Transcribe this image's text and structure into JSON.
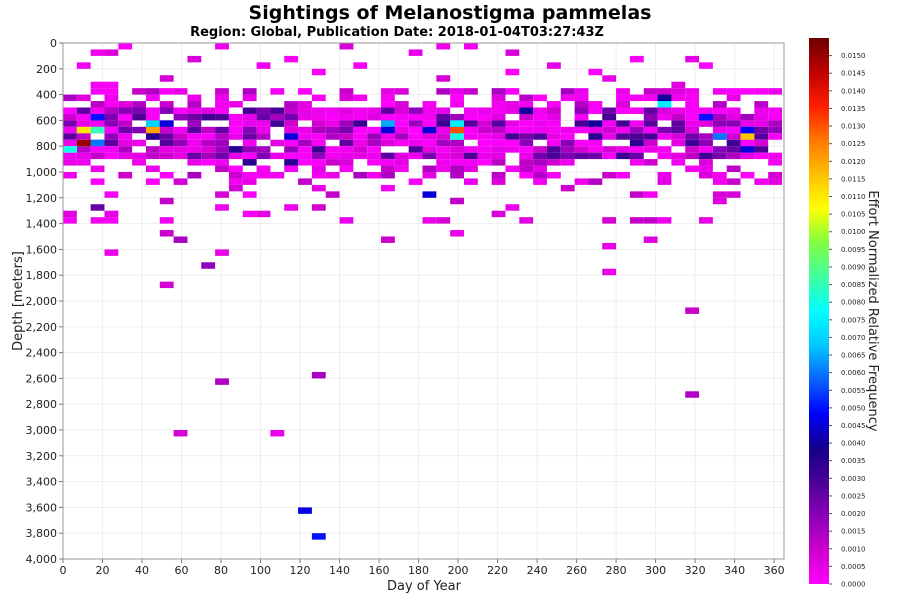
{
  "chart_data": {
    "type": "heatmap",
    "title": "Sightings of Melanostigma pammelas",
    "subtitle": "Region: Global, Publication Date: 2018-01-04T03:27:43Z",
    "xlabel": "Day of Year",
    "ylabel": "Depth [meters]",
    "colorbar_label": "Effort Normalized Relative Frequency",
    "xlim": [
      0,
      365
    ],
    "ylim": [
      0,
      4000
    ],
    "y_inverted": true,
    "x_ticks": [
      "0",
      "20",
      "40",
      "60",
      "80",
      "100",
      "120",
      "140",
      "160",
      "180",
      "200",
      "220",
      "240",
      "260",
      "280",
      "300",
      "320",
      "340",
      "360"
    ],
    "y_ticks": [
      "0",
      "200",
      "400",
      "600",
      "800",
      "1,000",
      "1,200",
      "1,400",
      "1,600",
      "1,800",
      "2,000",
      "2,200",
      "2,400",
      "2,600",
      "2,800",
      "3,000",
      "3,200",
      "3,400",
      "3,600",
      "3,800",
      "4,000"
    ],
    "colorbar_range": [
      0,
      0.0155
    ],
    "colorbar_ticks": [
      "0.0000",
      "0.0005",
      "0.0010",
      "0.0015",
      "0.0020",
      "0.0025",
      "0.0030",
      "0.0035",
      "0.0040",
      "0.0045",
      "0.0050",
      "0.0055",
      "0.0060",
      "0.0065",
      "0.0070",
      "0.0075",
      "0.0080",
      "0.0085",
      "0.0090",
      "0.0095",
      "0.0100",
      "0.0105",
      "0.0110",
      "0.0115",
      "0.0120",
      "0.0125",
      "0.0130",
      "0.0135",
      "0.0140",
      "0.0145",
      "0.0150"
    ],
    "colorscale": [
      "#ff00ff",
      "#cc00cc",
      "#8a00b8",
      "#4b0096",
      "#14008c",
      "#0000ff",
      "#0a64ff",
      "#00c8ff",
      "#00ffff",
      "#40ffa0",
      "#80ff40",
      "#ffff00",
      "#ffc000",
      "#ff7800",
      "#ff1e00",
      "#c00000",
      "#6e0000"
    ],
    "grid": true,
    "legend": "colorbar-right",
    "bin_size": {
      "day": 7,
      "depth_m": 50
    },
    "cells": [
      {
        "day": 14,
        "depth": 50,
        "value": 0.0003
      },
      {
        "day": 49,
        "depth": 250,
        "value": 0.0008
      },
      {
        "day": 14,
        "depth": 1250,
        "value": 0.0025
      },
      {
        "day": 21,
        "depth": 1300,
        "value": 0.0005
      },
      {
        "day": 21,
        "depth": 1600,
        "value": 0.0004
      },
      {
        "day": 49,
        "depth": 1350,
        "value": 0.0003
      },
      {
        "day": 49,
        "depth": 1450,
        "value": 0.001
      },
      {
        "day": 49,
        "depth": 1850,
        "value": 0.0008
      },
      {
        "day": 56,
        "depth": 1500,
        "value": 0.0015
      },
      {
        "day": 70,
        "depth": 1700,
        "value": 0.0018
      },
      {
        "day": 77,
        "depth": 1250,
        "value": 0.0003
      },
      {
        "day": 77,
        "depth": 1600,
        "value": 0.0004
      },
      {
        "day": 77,
        "depth": 2600,
        "value": 0.0014
      },
      {
        "day": 56,
        "depth": 3000,
        "value": 0.0008
      },
      {
        "day": 105,
        "depth": 3000,
        "value": 0.0004
      },
      {
        "day": 126,
        "depth": 2550,
        "value": 0.0015
      },
      {
        "day": 119,
        "depth": 3600,
        "value": 0.0046
      },
      {
        "day": 126,
        "depth": 3800,
        "value": 0.005
      },
      {
        "day": 140,
        "depth": 1350,
        "value": 0.0004
      },
      {
        "day": 161,
        "depth": 1500,
        "value": 0.001
      },
      {
        "day": 182,
        "depth": 1150,
        "value": 0.0045
      },
      {
        "day": 196,
        "depth": 1450,
        "value": 0.0004
      },
      {
        "day": 224,
        "depth": 1250,
        "value": 0.0004
      },
      {
        "day": 273,
        "depth": 1350,
        "value": 0.0008
      },
      {
        "day": 273,
        "depth": 1750,
        "value": 0.0004
      },
      {
        "day": 273,
        "depth": 1550,
        "value": 0.0004
      },
      {
        "day": 294,
        "depth": 1500,
        "value": 0.0006
      },
      {
        "day": 315,
        "depth": 2050,
        "value": 0.001
      },
      {
        "day": 315,
        "depth": 2700,
        "value": 0.0014
      },
      {
        "day": 329,
        "depth": 1200,
        "value": 0.0006
      },
      {
        "day": 14,
        "depth": 650,
        "value": 0.0085
      },
      {
        "day": 7,
        "depth": 650,
        "value": 0.011
      },
      {
        "day": 7,
        "depth": 750,
        "value": 0.015
      },
      {
        "day": 0,
        "depth": 800,
        "value": 0.008
      },
      {
        "day": 14,
        "depth": 750,
        "value": 0.006
      },
      {
        "day": 14,
        "depth": 550,
        "value": 0.005
      },
      {
        "day": 42,
        "depth": 650,
        "value": 0.012
      },
      {
        "day": 42,
        "depth": 600,
        "value": 0.007
      },
      {
        "day": 42,
        "depth": 700,
        "value": 0.0035
      },
      {
        "day": 49,
        "depth": 600,
        "value": 0.0045
      },
      {
        "day": 161,
        "depth": 600,
        "value": 0.0065
      },
      {
        "day": 161,
        "depth": 650,
        "value": 0.0045
      },
      {
        "day": 196,
        "depth": 650,
        "value": 0.013
      },
      {
        "day": 196,
        "depth": 600,
        "value": 0.0075
      },
      {
        "day": 196,
        "depth": 700,
        "value": 0.008
      },
      {
        "day": 182,
        "depth": 650,
        "value": 0.0045
      },
      {
        "day": 301,
        "depth": 450,
        "value": 0.0075
      },
      {
        "day": 301,
        "depth": 400,
        "value": 0.004
      },
      {
        "day": 322,
        "depth": 550,
        "value": 0.005
      },
      {
        "day": 329,
        "depth": 700,
        "value": 0.006
      },
      {
        "day": 343,
        "depth": 700,
        "value": 0.0115
      },
      {
        "day": 343,
        "depth": 650,
        "value": 0.0048
      },
      {
        "day": 343,
        "depth": 800,
        "value": 0.0045
      },
      {
        "day": 84,
        "depth": 800,
        "value": 0.0035
      },
      {
        "day": 91,
        "depth": 900,
        "value": 0.0035
      },
      {
        "day": 112,
        "depth": 900,
        "value": 0.0035
      },
      {
        "day": 112,
        "depth": 700,
        "value": 0.0045
      },
      {
        "day": 231,
        "depth": 500,
        "value": 0.004
      },
      {
        "day": 266,
        "depth": 600,
        "value": 0.004
      },
      {
        "day": 266,
        "depth": 700,
        "value": 0.0035
      },
      {
        "day": 287,
        "depth": 750,
        "value": 0.0035
      }
    ]
  }
}
